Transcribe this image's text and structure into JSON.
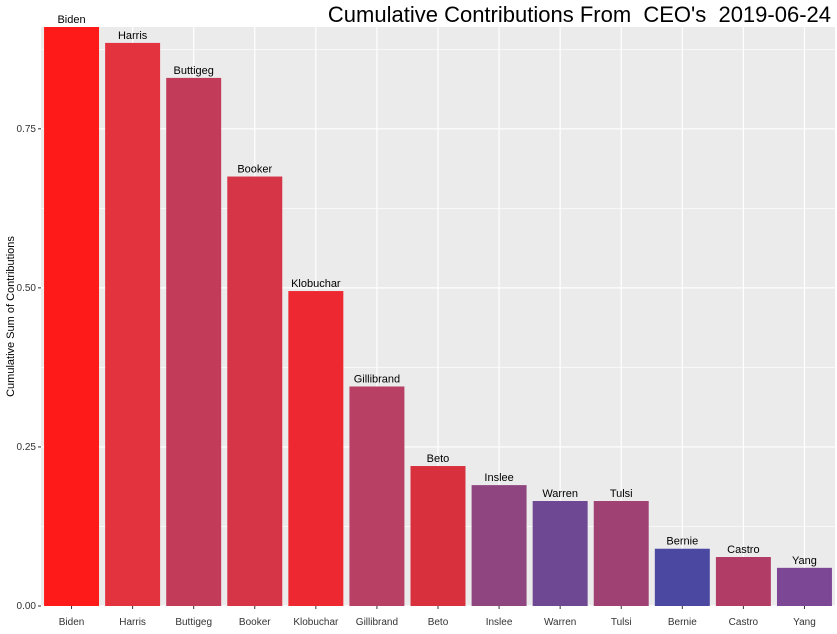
{
  "chart_data": {
    "type": "bar",
    "title": "Cumulative Contributions From  CEO's  2019-06-24",
    "xlabel": "",
    "ylabel": "Cumulative Sum of Contributions",
    "ylim": [
      0,
      0.91
    ],
    "yticks": [
      0,
      0.25,
      0.5,
      0.75
    ],
    "ytick_labels": [
      "0.00",
      "0.25",
      "0.50",
      "0.75"
    ],
    "grid": true,
    "categories": [
      "Biden",
      "Harris",
      "Buttigeg",
      "Booker",
      "Klobuchar",
      "Gillibrand",
      "Beto",
      "Inslee",
      "Warren",
      "Tulsi",
      "Bernie",
      "Castro",
      "Yang"
    ],
    "values": [
      0.91,
      0.885,
      0.83,
      0.675,
      0.495,
      0.345,
      0.22,
      0.19,
      0.165,
      0.165,
      0.09,
      0.077,
      0.06
    ],
    "bar_labels": [
      "Biden",
      "Harris",
      "Buttigeg",
      "Booker",
      "Klobuchar",
      "Gillibrand",
      "Beto",
      "Inslee",
      "Warren",
      "Tulsi",
      "Bernie",
      "Castro",
      "Yang"
    ],
    "colors": [
      "#ff1a1a",
      "#e2333f",
      "#c23c5a",
      "#d63548",
      "#ee2831",
      "#b74064",
      "#d9303e",
      "#8f4680",
      "#6e4893",
      "#9f4273",
      "#4a48a0",
      "#b13d66",
      "#7c4896"
    ]
  },
  "style": {
    "panel_bg": "#ebebeb",
    "grid_color": "#ffffff"
  }
}
